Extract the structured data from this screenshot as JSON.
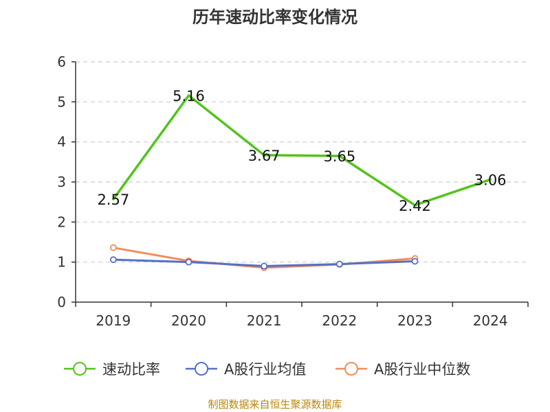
{
  "chart_data": {
    "type": "line",
    "title": "历年速动比率变化情况",
    "categories": [
      "2019",
      "2020",
      "2021",
      "2022",
      "2023",
      "2024"
    ],
    "yticks": [
      "0",
      "1",
      "2",
      "3",
      "4",
      "5",
      "6"
    ],
    "ylim": [
      0,
      6
    ],
    "grid": true,
    "legend_position": "bottom",
    "series": [
      {
        "name": "速动比率",
        "color": "#52c41a",
        "values": [
          2.57,
          5.16,
          3.67,
          3.65,
          2.42,
          3.06
        ],
        "labels": [
          "2.57",
          "5.16",
          "3.67",
          "3.65",
          "2.42",
          "3.06"
        ]
      },
      {
        "name": "A股行业均值",
        "color": "#5470c6",
        "values": [
          1.06,
          1.0,
          0.9,
          0.95,
          1.02,
          null
        ]
      },
      {
        "name": "A股行业中位数",
        "color": "#f28c5a",
        "values": [
          1.36,
          1.03,
          0.86,
          0.94,
          1.09,
          null
        ]
      }
    ]
  },
  "source_text": "制图数据来自恒生聚源数据库"
}
